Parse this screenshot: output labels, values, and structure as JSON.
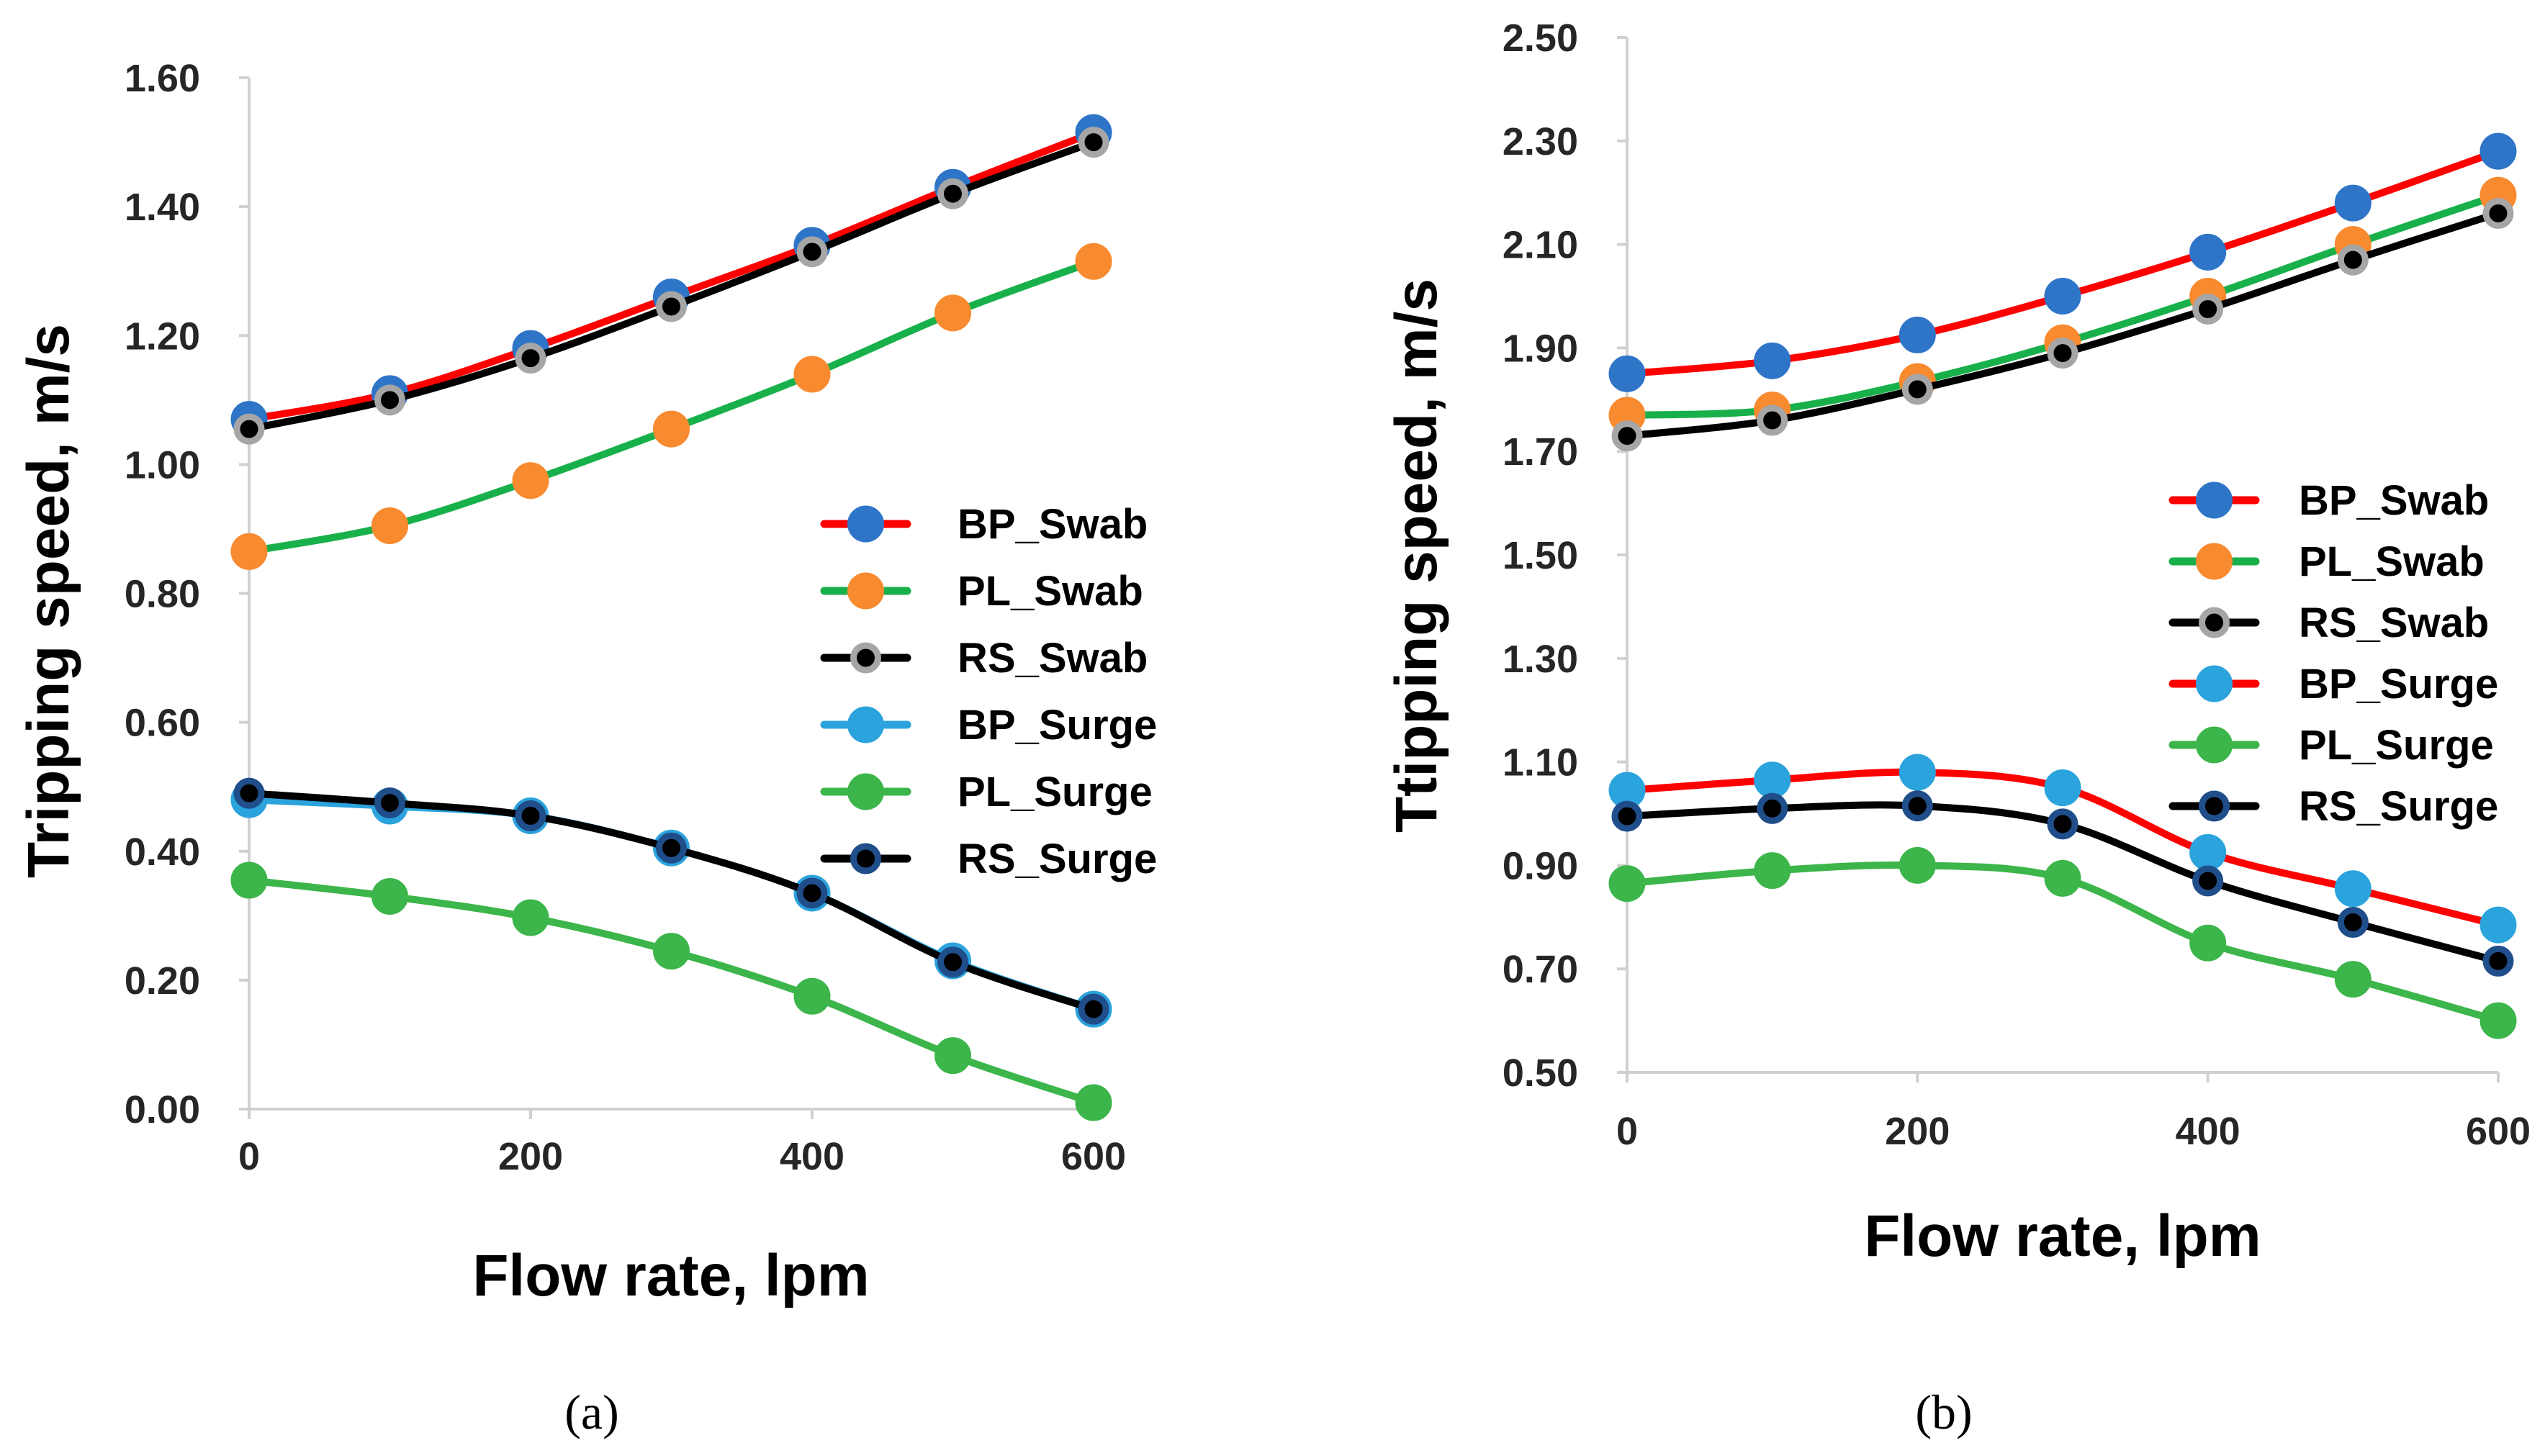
{
  "chart_data": [
    {
      "type": "line",
      "panel": "a",
      "caption": "(a)",
      "xlabel": "Flow rate, lpm",
      "ylabel": "Tripping speed, m/s",
      "x": [
        0,
        100,
        200,
        300,
        400,
        500,
        600
      ],
      "xticks": [
        0,
        200,
        400,
        600
      ],
      "xtick_labels": [
        "0",
        "200",
        "400",
        "600"
      ],
      "xlim": [
        0,
        600
      ],
      "ylim": [
        0,
        1.6
      ],
      "yticks": [
        0,
        0.2,
        0.4,
        0.6,
        0.8,
        1.0,
        1.2,
        1.4,
        1.6
      ],
      "ytick_labels": [
        "0.00",
        "0.20",
        "0.40",
        "0.60",
        "0.80",
        "1.00",
        "1.20",
        "1.40",
        "1.60"
      ],
      "legend_position": "right",
      "series": [
        {
          "name": "BP_Swab",
          "line_color": "#ff0000",
          "marker_color": "#2e75c8",
          "marker_border": "#2e75c8",
          "marker_size": "large",
          "values": [
            1.07,
            1.11,
            1.18,
            1.26,
            1.34,
            1.43,
            1.515
          ]
        },
        {
          "name": "PL_Swab",
          "line_color": "#18b04a",
          "marker_color": "#f88a2f",
          "marker_border": "#f88a2f",
          "marker_size": "large",
          "values": [
            0.865,
            0.905,
            0.975,
            1.055,
            1.14,
            1.235,
            1.315
          ]
        },
        {
          "name": "RS_Swab",
          "line_color": "#000000",
          "marker_color": "#000000",
          "marker_border": "#a6a6a6",
          "marker_size": "small",
          "values": [
            1.055,
            1.1,
            1.165,
            1.245,
            1.33,
            1.42,
            1.5
          ]
        },
        {
          "name": "BP_Surge",
          "line_color": "#2ba3dc",
          "marker_color": "#2ba3dc",
          "marker_border": "#2ba3dc",
          "marker_size": "large",
          "values": [
            0.48,
            0.47,
            0.455,
            0.405,
            0.335,
            0.23,
            0.155
          ]
        },
        {
          "name": "PL_Surge",
          "line_color": "#3cb54a",
          "marker_color": "#3cb54a",
          "marker_border": "#3cb54a",
          "marker_size": "large",
          "values": [
            0.355,
            0.33,
            0.297,
            0.245,
            0.175,
            0.083,
            0.01
          ]
        },
        {
          "name": "RS_Surge",
          "line_color": "#000000",
          "marker_color": "#000000",
          "marker_border": "#1f4e8a",
          "marker_size": "small",
          "values": [
            0.49,
            0.475,
            0.455,
            0.405,
            0.335,
            0.228,
            0.155
          ]
        }
      ]
    },
    {
      "type": "line",
      "panel": "b",
      "caption": "(b)",
      "xlabel": "Flow rate, lpm",
      "ylabel": "Ttipping speed, m/s",
      "x": [
        0,
        100,
        200,
        300,
        400,
        500,
        600
      ],
      "xticks": [
        0,
        200,
        400,
        600
      ],
      "xtick_labels": [
        "0",
        "200",
        "400",
        "600"
      ],
      "xlim": [
        0,
        600
      ],
      "ylim": [
        0.5,
        2.5
      ],
      "yticks": [
        0.5,
        0.7,
        0.9,
        1.1,
        1.3,
        1.5,
        1.7,
        1.9,
        2.1,
        2.3,
        2.5
      ],
      "ytick_labels": [
        "0.50",
        "0.70",
        "0.90",
        "1.10",
        "1.30",
        "1.50",
        "1.70",
        "1.90",
        "2.10",
        "2.30",
        "2.50"
      ],
      "legend_position": "right",
      "series": [
        {
          "name": "BP_Swab",
          "line_color": "#ff0000",
          "marker_color": "#2e75c8",
          "marker_border": "#2e75c8",
          "marker_size": "large",
          "values": [
            1.85,
            1.875,
            1.925,
            2.0,
            2.085,
            2.18,
            2.28
          ]
        },
        {
          "name": "PL_Swab",
          "line_color": "#18b04a",
          "marker_color": "#f88a2f",
          "marker_border": "#f88a2f",
          "marker_size": "large",
          "values": [
            1.77,
            1.78,
            1.835,
            1.91,
            2.0,
            2.1,
            2.195
          ]
        },
        {
          "name": "RS_Swab",
          "line_color": "#000000",
          "marker_color": "#000000",
          "marker_border": "#a6a6a6",
          "marker_size": "small",
          "values": [
            1.73,
            1.76,
            1.82,
            1.89,
            1.975,
            2.07,
            2.16
          ]
        },
        {
          "name": "BP_Surge",
          "line_color": "#ff0000",
          "marker_color": "#2ba3dc",
          "marker_border": "#2ba3dc",
          "marker_size": "large",
          "values": [
            1.045,
            1.065,
            1.08,
            1.05,
            0.925,
            0.855,
            0.785
          ]
        },
        {
          "name": "PL_Surge",
          "line_color": "#3cb54a",
          "marker_color": "#3cb54a",
          "marker_border": "#3cb54a",
          "marker_size": "large",
          "values": [
            0.865,
            0.89,
            0.9,
            0.875,
            0.75,
            0.68,
            0.6
          ]
        },
        {
          "name": "RS_Surge",
          "line_color": "#000000",
          "marker_color": "#000000",
          "marker_border": "#1f4e8a",
          "marker_size": "small",
          "values": [
            0.995,
            1.01,
            1.015,
            0.98,
            0.87,
            0.79,
            0.715
          ]
        }
      ]
    }
  ]
}
